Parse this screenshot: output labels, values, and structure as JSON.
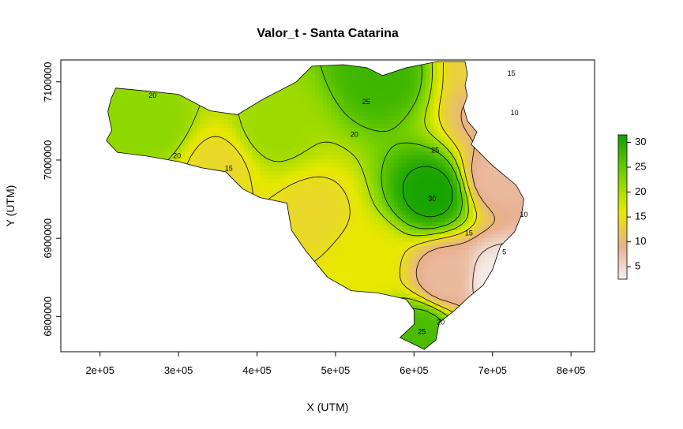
{
  "chart_data": {
    "type": "heatmap",
    "title": "Valor_t - Santa Catarina",
    "xlabel": "X (UTM)",
    "ylabel": "Y (UTM)",
    "xlim": [
      150000,
      830000
    ],
    "ylim": [
      6755000,
      7128000
    ],
    "x_ticks": [
      200000,
      300000,
      400000,
      500000,
      600000,
      700000,
      800000
    ],
    "x_tick_labels": [
      "2e+05",
      "3e+05",
      "4e+05",
      "5e+05",
      "6e+05",
      "7e+05",
      "8e+05"
    ],
    "y_ticks": [
      6800000,
      6900000,
      7000000,
      7100000
    ],
    "y_tick_labels": [
      "6800000",
      "6900000",
      "7000000",
      "7100000"
    ],
    "legend": {
      "position": "right",
      "ticks": [
        5,
        10,
        15,
        20,
        25,
        30
      ],
      "tick_labels": [
        "5",
        "10",
        "15",
        "20",
        "25",
        "30"
      ],
      "range": [
        2.5,
        31.5
      ],
      "color_stops": [
        {
          "value": 2.5,
          "color": "#f5f0f0"
        },
        {
          "value": 9,
          "color": "#e8b090"
        },
        {
          "value": 16,
          "color": "#e8e800"
        },
        {
          "value": 23,
          "color": "#7fd400"
        },
        {
          "value": 31.5,
          "color": "#10a000"
        }
      ]
    },
    "boundary_polygon": [
      [
        220000,
        7092000
      ],
      [
        262000,
        7088000
      ],
      [
        300000,
        7084000
      ],
      [
        340000,
        7063000
      ],
      [
        375000,
        7058000
      ],
      [
        408000,
        7078000
      ],
      [
        450000,
        7100000
      ],
      [
        470000,
        7120000
      ],
      [
        510000,
        7122000
      ],
      [
        540000,
        7118000
      ],
      [
        560000,
        7108000
      ],
      [
        590000,
        7118000
      ],
      [
        630000,
        7126000
      ],
      [
        665000,
        7126000
      ],
      [
        668000,
        7110000
      ],
      [
        665000,
        7095000
      ],
      [
        668000,
        7082000
      ],
      [
        663000,
        7068000
      ],
      [
        668000,
        7050000
      ],
      [
        680000,
        7036000
      ],
      [
        673000,
        7020000
      ],
      [
        700000,
        6993000
      ],
      [
        730000,
        6968000
      ],
      [
        740000,
        6950000
      ],
      [
        737000,
        6930000
      ],
      [
        728000,
        6908000
      ],
      [
        710000,
        6890000
      ],
      [
        700000,
        6860000
      ],
      [
        688000,
        6840000
      ],
      [
        670000,
        6825000
      ],
      [
        652000,
        6808000
      ],
      [
        632000,
        6792000
      ],
      [
        628000,
        6770000
      ],
      [
        613000,
        6758000
      ],
      [
        595000,
        6767000
      ],
      [
        582000,
        6773000
      ],
      [
        600000,
        6790000
      ],
      [
        600000,
        6808000
      ],
      [
        590000,
        6822000
      ],
      [
        555000,
        6830000
      ],
      [
        520000,
        6833000
      ],
      [
        490000,
        6850000
      ],
      [
        462000,
        6884000
      ],
      [
        444000,
        6910000
      ],
      [
        438000,
        6945000
      ],
      [
        404000,
        6952000
      ],
      [
        382000,
        6963000
      ],
      [
        360000,
        6985000
      ],
      [
        330000,
        6990000
      ],
      [
        300000,
        6998000
      ],
      [
        260000,
        7005000
      ],
      [
        222000,
        7010000
      ],
      [
        208000,
        7025000
      ],
      [
        215000,
        7038000
      ],
      [
        210000,
        7062000
      ],
      [
        214000,
        7078000
      ]
    ],
    "field_seeds": [
      {
        "x": 623000,
        "y": 6958000,
        "value": 31
      },
      {
        "x": 560000,
        "y": 7110000,
        "value": 28
      },
      {
        "x": 268000,
        "y": 7045000,
        "value": 22
      },
      {
        "x": 350000,
        "y": 6990000,
        "value": 14
      },
      {
        "x": 470000,
        "y": 6930000,
        "value": 14
      },
      {
        "x": 540000,
        "y": 6870000,
        "value": 16
      },
      {
        "x": 420000,
        "y": 7040000,
        "value": 21
      },
      {
        "x": 700000,
        "y": 7060000,
        "value": 9
      },
      {
        "x": 705000,
        "y": 6980000,
        "value": 8
      },
      {
        "x": 705000,
        "y": 6845000,
        "value": 3
      },
      {
        "x": 640000,
        "y": 6850000,
        "value": 8
      },
      {
        "x": 608000,
        "y": 6780000,
        "value": 27
      },
      {
        "x": 690000,
        "y": 7120000,
        "value": 13
      }
    ],
    "contour_labels": [
      {
        "text": "30",
        "x": 623000,
        "y": 6950000
      },
      {
        "text": "25",
        "x": 627000,
        "y": 7012000
      },
      {
        "text": "25",
        "x": 539000,
        "y": 7074000
      },
      {
        "text": "20",
        "x": 524000,
        "y": 7032000
      },
      {
        "text": "20",
        "x": 267000,
        "y": 7082000
      },
      {
        "text": "20",
        "x": 298000,
        "y": 7005000
      },
      {
        "text": "15",
        "x": 364000,
        "y": 6989000
      },
      {
        "text": "15",
        "x": 670000,
        "y": 6906000
      },
      {
        "text": "10",
        "x": 728000,
        "y": 7060000
      },
      {
        "text": "15",
        "x": 724000,
        "y": 7110000
      },
      {
        "text": "10",
        "x": 740000,
        "y": 6930000
      },
      {
        "text": "5",
        "x": 715000,
        "y": 6882000
      },
      {
        "text": "20",
        "x": 634000,
        "y": 6792000
      },
      {
        "text": "25",
        "x": 610000,
        "y": 6780000
      }
    ]
  }
}
